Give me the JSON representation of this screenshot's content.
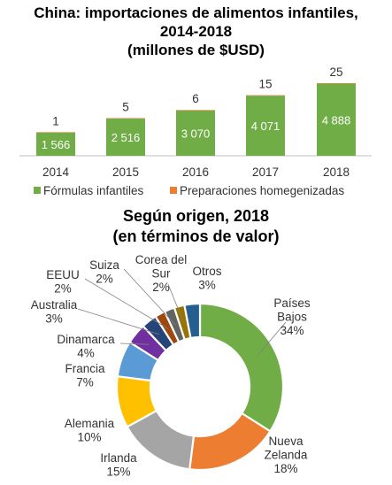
{
  "titles": {
    "bar_line1": "China: importaciones de alimentos infantiles,",
    "bar_line2": "2014-2018",
    "bar_line3": "(millones de $USD)",
    "pie_line1": "Según origen, 2018",
    "pie_line2": "(en términos de valor)"
  },
  "colors": {
    "green": "#70ad47",
    "orange": "#ed7d31",
    "gray": "#a5a5a5",
    "yellow": "#ffc000",
    "blue": "#5b9bd5",
    "purple": "#7030a0",
    "navy": "#264478",
    "brown": "#9e480e",
    "dark_gray": "#636363",
    "olive": "#997300",
    "dark_blue": "#255e91"
  },
  "chart_data": [
    {
      "type": "bar",
      "stacked": true,
      "title": "China: importaciones de alimentos infantiles, 2014-2018 (millones de $USD)",
      "categories": [
        "2014",
        "2015",
        "2016",
        "2017",
        "2018"
      ],
      "series": [
        {
          "name": "Fórmulas infantiles",
          "color": "#70ad47",
          "values": [
            1566,
            2516,
            3070,
            4071,
            4888
          ],
          "labels": [
            "1 566",
            "2 516",
            "3 070",
            "4 071",
            "4 888"
          ]
        },
        {
          "name": "Preparaciones homegenizadas",
          "color": "#ed7d31",
          "values": [
            1,
            5,
            6,
            15,
            25
          ],
          "labels": [
            "1",
            "5",
            "6",
            "15",
            "25"
          ]
        }
      ],
      "ylim": [
        0,
        5400
      ],
      "legend": "bottom",
      "grid": false
    },
    {
      "type": "pie",
      "donut": true,
      "title": "Según origen, 2018 (en términos de valor)",
      "slices": [
        {
          "name": "Países Bajos",
          "value": 34,
          "label_line1": "Países",
          "label_line2": "Bajos",
          "pct": "34%",
          "color": "#70ad47"
        },
        {
          "name": "Nueva Zelanda",
          "value": 18,
          "label_line1": "Nueva",
          "label_line2": "Zelanda",
          "pct": "18%",
          "color": "#ed7d31"
        },
        {
          "name": "Irlanda",
          "value": 15,
          "label_line1": "Irlanda",
          "label_line2": "",
          "pct": "15%",
          "color": "#a5a5a5"
        },
        {
          "name": "Alemania",
          "value": 10,
          "label_line1": "Alemania",
          "label_line2": "",
          "pct": "10%",
          "color": "#ffc000"
        },
        {
          "name": "Francia",
          "value": 7,
          "label_line1": "Francia",
          "label_line2": "",
          "pct": "7%",
          "color": "#5b9bd5"
        },
        {
          "name": "Dinamarca",
          "value": 4,
          "label_line1": "Dinamarca",
          "label_line2": "",
          "pct": "4%",
          "color": "#7030a0"
        },
        {
          "name": "Australia",
          "value": 3,
          "label_line1": "Australia",
          "label_line2": "",
          "pct": "3%",
          "color": "#264478"
        },
        {
          "name": "EEUU",
          "value": 2,
          "label_line1": "EEUU",
          "label_line2": "",
          "pct": "2%",
          "color": "#9e480e"
        },
        {
          "name": "Suiza",
          "value": 2,
          "label_line1": "Suiza",
          "label_line2": "",
          "pct": "2%",
          "color": "#636363"
        },
        {
          "name": "Corea del Sur",
          "value": 2,
          "label_line1": "Corea del",
          "label_line2": "Sur",
          "pct": "2%",
          "color": "#997300"
        },
        {
          "name": "Otros",
          "value": 3,
          "label_line1": "Otros",
          "label_line2": "",
          "pct": "3%",
          "color": "#255e91"
        }
      ]
    }
  ]
}
